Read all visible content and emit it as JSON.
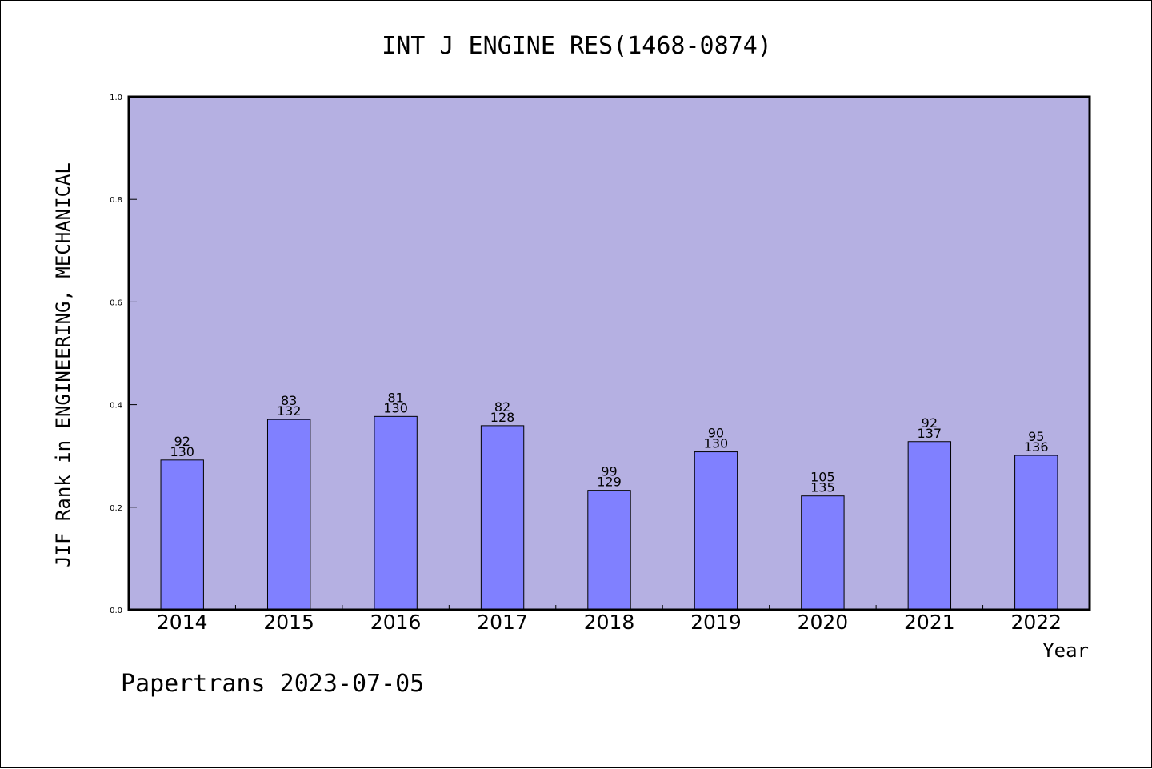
{
  "chart_data": {
    "type": "bar",
    "title": "INT J ENGINE RES(1468-0874)",
    "xlabel": "Year",
    "ylabel": "JIF Rank in ENGINEERING, MECHANICAL",
    "ylim": [
      0.0,
      1.0
    ],
    "yticks": [
      "0.0",
      "0.2",
      "0.4",
      "0.6",
      "0.8",
      "1.0"
    ],
    "grid": false,
    "categories": [
      "2014",
      "2015",
      "2016",
      "2017",
      "2018",
      "2019",
      "2020",
      "2021",
      "2022"
    ],
    "values": [
      0.292,
      0.371,
      0.377,
      0.359,
      0.233,
      0.308,
      0.222,
      0.328,
      0.301
    ],
    "rank": [
      "92",
      "83",
      "81",
      "82",
      "99",
      "90",
      "105",
      "92",
      "95"
    ],
    "total": [
      "130",
      "132",
      "130",
      "128",
      "129",
      "130",
      "135",
      "137",
      "136"
    ],
    "colors": {
      "plot_background": "#b5b0e2",
      "bar_fill": "#8080ff",
      "bar_stroke": "#000000"
    }
  },
  "footer": "Papertrans 2023-07-05"
}
